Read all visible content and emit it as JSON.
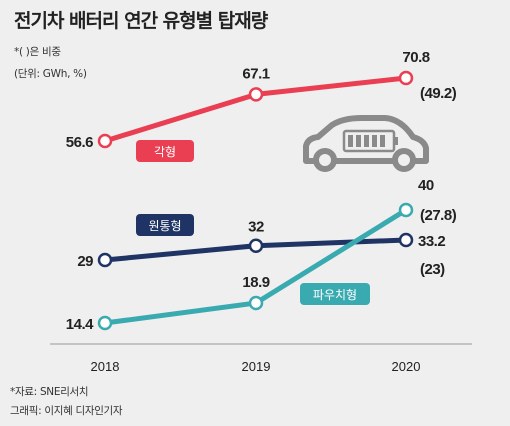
{
  "title": "전기차 배터리 연간 유형별 탑재량",
  "notes": [
    "*( )은 비중",
    "(단위: GWh, %)"
  ],
  "source": "*자료: SNE리서치",
  "credit": "그래픽: 이지혜 디자인기자",
  "colors": {
    "prismatic": "#ea3e52",
    "cylindrical": "#1f3464",
    "pouch": "#3aaab1",
    "axis": "#9a9a9a",
    "car": "#8a8a8a"
  },
  "icon": "car-battery-icon",
  "chart_data": {
    "type": "line",
    "title": "전기차 배터리 연간 유형별 탑재량",
    "x": [
      "2018",
      "2019",
      "2020"
    ],
    "unit": "GWh, %",
    "series": [
      {
        "name": "각형",
        "values": [
          56.6,
          67.1,
          70.8
        ],
        "labels": [
          "56.6",
          "67.1",
          "70.8"
        ],
        "share_2020": "(49.2)"
      },
      {
        "name": "원통형",
        "values": [
          29,
          32,
          33.2
        ],
        "labels": [
          "29",
          "32",
          "33.2"
        ],
        "share_2020": "(23)"
      },
      {
        "name": "파우치형",
        "values": [
          14.4,
          18.9,
          40
        ],
        "labels": [
          "14.4",
          "18.9",
          "40"
        ],
        "share_2020": "(27.8)"
      }
    ]
  }
}
